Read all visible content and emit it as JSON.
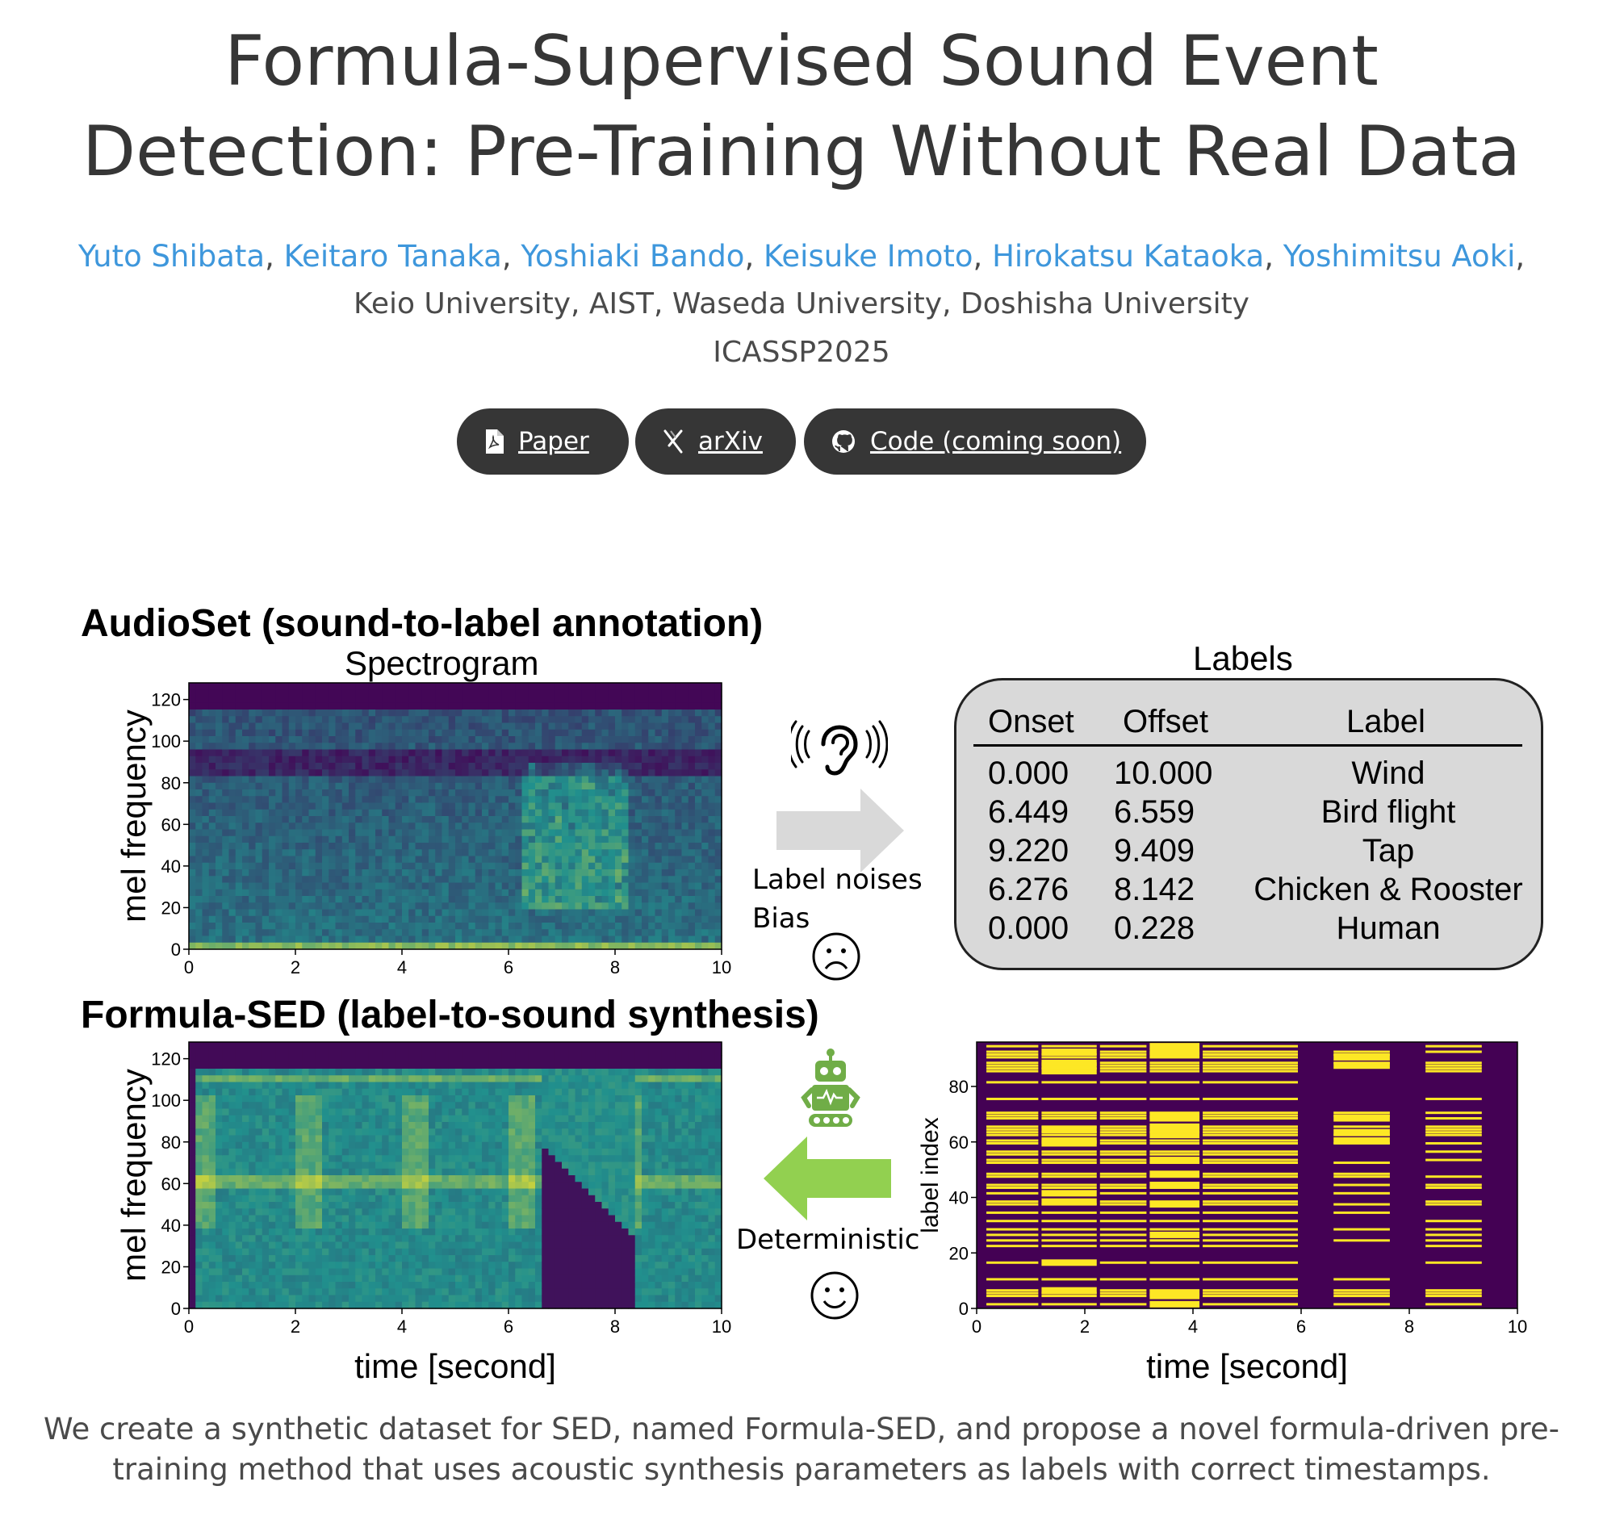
{
  "header": {
    "title_line1": "Formula-Supervised Sound Event",
    "title_line2": "Detection: Pre-Training Without Real Data",
    "authors": [
      {
        "name": "Yuto Shibata",
        "sep": ", "
      },
      {
        "name": "Keitaro Tanaka",
        "sep": ", "
      },
      {
        "name": "Yoshiaki Bando",
        "sep": ", "
      },
      {
        "name": "Keisuke Imoto",
        "sep": ", "
      },
      {
        "name": "Hirokatsu Kataoka",
        "sep": ", "
      },
      {
        "name": "Yoshimitsu Aoki",
        "sep": ","
      }
    ],
    "affiliations": "Keio University, AIST, Waseda University, Doshisha University",
    "venue": "ICASSP2025"
  },
  "links": [
    {
      "label": "Paper",
      "icon": "pdf-file-icon"
    },
    {
      "label": "arXiv",
      "icon": "arxiv-icon"
    },
    {
      "label": "Code (coming soon)",
      "icon": "github-icon"
    }
  ],
  "figure": {
    "audioset_heading": "AudioSet (sound-to-label annotation)",
    "spectrogram_title": "Spectrogram",
    "labels_title": "Labels",
    "formula_heading": "Formula-SED (label-to-sound synthesis)",
    "ylabel_mel": "mel frequency",
    "ylabel_label_index": "label index",
    "xlabel_time": "time [second]",
    "mel_yticks": [
      "0",
      "20",
      "40",
      "60",
      "80",
      "100",
      "120"
    ],
    "time_xticks": [
      "0",
      "2",
      "4",
      "6",
      "8",
      "10"
    ],
    "label_yticks": [
      "0",
      "20",
      "40",
      "60",
      "80"
    ],
    "label_noises": "Label noises",
    "bias": "Bias",
    "deterministic": "Deterministic",
    "table": {
      "headers": [
        "Onset",
        "Offset",
        "Label"
      ],
      "rows": [
        [
          "0.000",
          "10.000",
          "Wind"
        ],
        [
          "6.449",
          "6.559",
          "Bird flight"
        ],
        [
          "9.220",
          "9.409",
          "Tap"
        ],
        [
          "6.276",
          "8.142",
          "Chicken & Rooster"
        ],
        [
          "0.000",
          "0.228",
          "Human"
        ]
      ]
    },
    "colors": {
      "spec_dark": "#440154",
      "spec_mid": "#21908d",
      "spec_bright": "#fde725",
      "gray_arrow": "#d9d9d9",
      "green_arrow": "#92d050",
      "robot_green": "#70ad47"
    }
  },
  "caption_line1": "We create a synthetic dataset for SED, named Formula-SED, and propose a novel formula-driven pre-",
  "caption_line2": "training method that uses acoustic synthesis parameters as labels with correct timestamps."
}
